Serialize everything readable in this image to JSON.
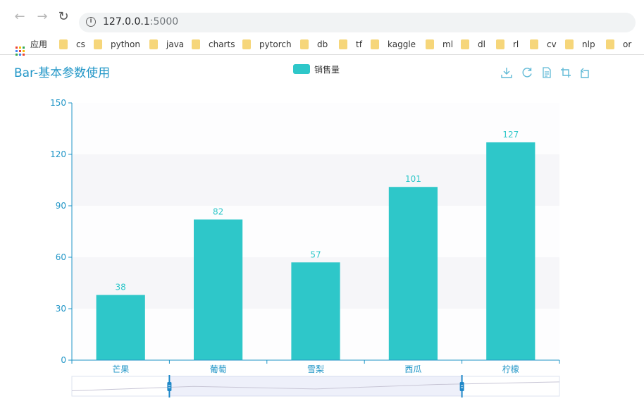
{
  "browser": {
    "url_host": "127.0.0.1",
    "url_port": ":5000",
    "bookmarks": [
      {
        "label": "应用",
        "icon": "apps-grid-icon"
      },
      {
        "label": "cs",
        "icon": "folder-icon"
      },
      {
        "label": "python",
        "icon": "folder-icon"
      },
      {
        "label": "java",
        "icon": "folder-icon"
      },
      {
        "label": "charts",
        "icon": "folder-icon"
      },
      {
        "label": "pytorch",
        "icon": "folder-icon"
      },
      {
        "label": "db",
        "icon": "folder-icon"
      },
      {
        "label": "tf",
        "icon": "folder-icon"
      },
      {
        "label": "kaggle",
        "icon": "folder-icon"
      },
      {
        "label": "ml",
        "icon": "folder-icon"
      },
      {
        "label": "dl",
        "icon": "folder-icon"
      },
      {
        "label": "rl",
        "icon": "folder-icon"
      },
      {
        "label": "cv",
        "icon": "folder-icon"
      },
      {
        "label": "nlp",
        "icon": "folder-icon"
      },
      {
        "label": "or",
        "icon": "folder-icon"
      }
    ]
  },
  "toolbox": [
    "download-icon",
    "refresh-icon",
    "data-view-icon",
    "zoom-icon",
    "zoom-reset-icon"
  ],
  "chart_data": {
    "type": "bar",
    "title": "Bar-基本参数使用",
    "categories": [
      "芒果",
      "葡萄",
      "雪梨",
      "西瓜",
      "柠檬"
    ],
    "series": [
      {
        "name": "销售量",
        "values": [
          38,
          82,
          57,
          101,
          127
        ]
      }
    ],
    "yticks": [
      0,
      30,
      60,
      90,
      120,
      150
    ],
    "ylim": [
      0,
      150
    ],
    "grid": "horizontal-split-areas",
    "legend": "top-center",
    "data_labels": "top",
    "color": "#2ec7c9",
    "axis_color": "#2196c7",
    "datazoom_range": [
      20,
      80
    ]
  }
}
